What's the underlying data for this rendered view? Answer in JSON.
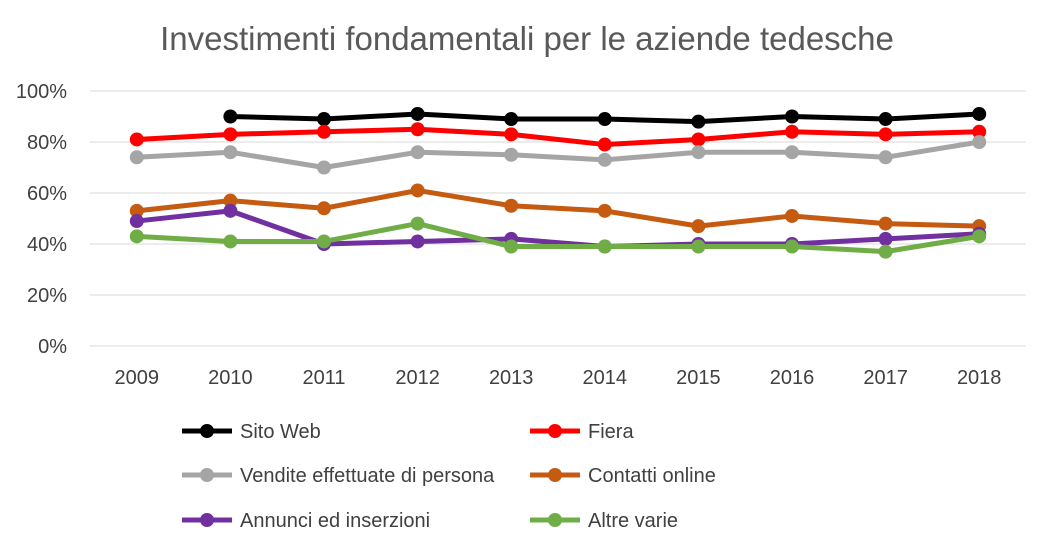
{
  "chart_data": {
    "type": "line",
    "title": "Investimenti fondamentali per le aziende tedesche",
    "xlabel": "",
    "ylabel": "",
    "ylim": [
      0,
      100
    ],
    "y_ticks": [
      "0%",
      "20%",
      "40%",
      "60%",
      "80%",
      "100%"
    ],
    "y_tick_values": [
      0,
      20,
      40,
      60,
      80,
      100
    ],
    "categories": [
      "2009",
      "2010",
      "2011",
      "2012",
      "2013",
      "2014",
      "2015",
      "2016",
      "2017",
      "2018"
    ],
    "grid": true,
    "legend_position": "bottom",
    "series": [
      {
        "name": "Sito Web",
        "color": "#000000",
        "values": [
          null,
          90,
          89,
          91,
          89,
          89,
          88,
          90,
          89,
          91
        ]
      },
      {
        "name": "Fiera",
        "color": "#ff0000",
        "values": [
          81,
          83,
          84,
          85,
          83,
          79,
          81,
          84,
          83,
          84
        ]
      },
      {
        "name": "Vendite effettuate di persona",
        "color": "#a5a5a5",
        "values": [
          74,
          76,
          70,
          76,
          75,
          73,
          76,
          76,
          74,
          80
        ]
      },
      {
        "name": "Contatti online",
        "color": "#c55a11",
        "values": [
          53,
          57,
          54,
          61,
          55,
          53,
          47,
          51,
          48,
          47
        ]
      },
      {
        "name": "Annunci ed inserzioni",
        "color": "#7030a0",
        "values": [
          49,
          53,
          40,
          41,
          42,
          39,
          40,
          40,
          42,
          44
        ]
      },
      {
        "name": "Altre varie",
        "color": "#70ad47",
        "values": [
          43,
          41,
          41,
          48,
          39,
          39,
          39,
          39,
          37,
          43
        ]
      }
    ]
  }
}
